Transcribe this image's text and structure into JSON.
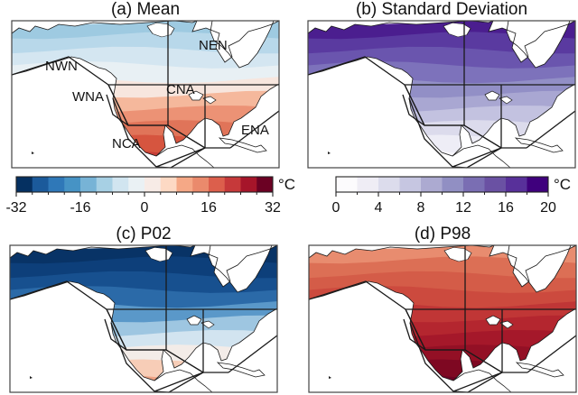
{
  "chart_data": [
    {
      "type": "heatmap",
      "title": "(a) Mean",
      "map": "North America",
      "regions": [
        "NWN",
        "NEN",
        "WNA",
        "CNA",
        "ENA",
        "NCA"
      ],
      "region_labels_shown": [
        "NWN",
        "NEN",
        "WNA",
        "CNA",
        "ENA",
        "NCA"
      ],
      "colormap": "blue-white-red",
      "colorbar": {
        "ticks": [
          -32,
          -16,
          0,
          16,
          32
        ],
        "range": [
          -32,
          32
        ],
        "levels": 16,
        "unit": "°C",
        "colors": [
          "#053061",
          "#1b5a9b",
          "#2f78b8",
          "#4693c5",
          "#77b3d6",
          "#a7d0e4",
          "#d1e5f0",
          "#eaf1f4",
          "#f7ebe6",
          "#fdd9c4",
          "#f5a886",
          "#ea8a6c",
          "#dc5f4c",
          "#c6393a",
          "#a6152a",
          "#6b0123"
        ]
      },
      "description": "Mean temperature: cold (blue, around -16 to -24 °C) in northern Canada/Arctic, warming southward to ~0 °C near the US-Canada border, warm (red, 16-28 °C) over Mexico and southern US."
    },
    {
      "type": "heatmap",
      "title": "(b) Standard Deviation",
      "map": "North America",
      "regions": [
        "NWN",
        "NEN",
        "WNA",
        "CNA",
        "ENA",
        "NCA"
      ],
      "colormap": "purples",
      "colorbar": {
        "ticks": [
          0,
          4,
          8,
          12,
          16,
          20
        ],
        "range": [
          0,
          20
        ],
        "levels": 10,
        "unit": "°C",
        "colors": [
          "#fcfbfd",
          "#efedf5",
          "#dcdcec",
          "#c6c6e1",
          "#acaad1",
          "#918fc3",
          "#7a6eb3",
          "#6a51a3",
          "#58309a",
          "#3f007d"
        ]
      },
      "description": "Standard deviation: highest (14-18 °C) over northern Canada, decreasing southward to ~2-4 °C over Mexico and Florida."
    },
    {
      "type": "heatmap",
      "title": "(c) P02",
      "map": "North America",
      "regions": [
        "NWN",
        "NEN",
        "WNA",
        "CNA",
        "ENA",
        "NCA"
      ],
      "colormap": "blue-white-red",
      "colorbar_shared_with": "(a) Mean",
      "description": "2nd percentile: very cold (< -32 °C) across Canada/Arctic, moderate cold over US, near 0 to slightly positive over Mexico."
    },
    {
      "type": "heatmap",
      "title": "(d) P98",
      "map": "North America",
      "regions": [
        "NWN",
        "NEN",
        "WNA",
        "CNA",
        "ENA",
        "NCA"
      ],
      "colormap": "blue-white-red",
      "colorbar_shared_with": "(a) Mean",
      "description": "98th percentile: warm (12-20 °C) in the north, hot (24-32+ °C) over the central/southern US and Mexico."
    }
  ],
  "panels": {
    "a": {
      "title": "(a) Mean"
    },
    "b": {
      "title": "(b) Standard Deviation"
    },
    "c": {
      "title": "(c) P02"
    },
    "d": {
      "title": "(d) P98"
    }
  },
  "regions": {
    "nwn": "NWN",
    "nen": "NEN",
    "wna": "WNA",
    "cna": "CNA",
    "ena": "ENA",
    "nca": "NCA"
  },
  "colorbars": {
    "mean": {
      "unit": "°C",
      "ticks": [
        "-32",
        "-16",
        "0",
        "16",
        "32"
      ]
    },
    "sd": {
      "unit": "°C",
      "ticks": [
        "0",
        "4",
        "8",
        "12",
        "16",
        "20"
      ]
    }
  },
  "palettes": {
    "mean_bands": [
      "#9ecae1",
      "#b8d8ea",
      "#d4e6f1",
      "#e8f0f4",
      "#f7e6de",
      "#f5b89c",
      "#ec9275",
      "#e07459",
      "#d6553f",
      "#c63d36"
    ],
    "sd_bands": [
      "#4b1e8f",
      "#5a3aa0",
      "#6a55ae",
      "#7d72bb",
      "#928fc6",
      "#a9a7d2",
      "#c3c2e0",
      "#dcdbec",
      "#eeedf6",
      "#f7f6fb"
    ],
    "p02_bands": [
      "#083366",
      "#0d3f7a",
      "#17508f",
      "#2b6aa8",
      "#5a98c9",
      "#9ec6e1",
      "#d2e4f0",
      "#f3ece8",
      "#f7cdb7",
      "#eda183"
    ],
    "p98_bands": [
      "#e88c6f",
      "#dc6f55",
      "#d45c48",
      "#cc4a3e",
      "#c03636",
      "#b4262f",
      "#a5182a",
      "#931025",
      "#7e0822",
      "#6b0123"
    ]
  }
}
